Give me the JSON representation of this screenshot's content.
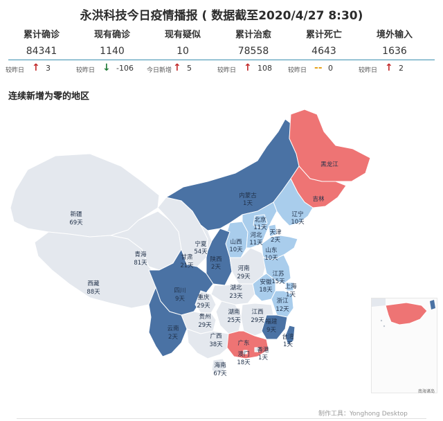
{
  "title": "永洪科技今日疫情播报 ( 数据截至2020/4/27 8:30)",
  "stats": [
    {
      "label": "累计确诊",
      "value": "84341",
      "cmp_label": "较昨日",
      "dir": "up",
      "arrow": "↑",
      "delta": "3"
    },
    {
      "label": "现有确诊",
      "value": "1140",
      "cmp_label": "较昨日",
      "dir": "down",
      "arrow": "↓",
      "delta": "-106"
    },
    {
      "label": "现有疑似",
      "value": "10",
      "cmp_label": "今日新增",
      "dir": "up",
      "arrow": "↑",
      "delta": "5"
    },
    {
      "label": "累计治愈",
      "value": "78558",
      "cmp_label": "较昨日",
      "dir": "up",
      "arrow": "↑",
      "delta": "108"
    },
    {
      "label": "累计死亡",
      "value": "4643",
      "cmp_label": "较昨日",
      "dir": "flat",
      "arrow": "--",
      "delta": "0"
    },
    {
      "label": "境外输入",
      "value": "1636",
      "cmp_label": "较昨日",
      "dir": "up",
      "arrow": "↑",
      "delta": "2"
    }
  ],
  "section_title": "连续新增为零的地区",
  "colors": {
    "dark": "#4a72a4",
    "light": "#a9cdec",
    "red": "#ee7474",
    "grey": "#e4e8ee",
    "border": "#ffffff"
  },
  "regions": [
    {
      "name": "黑龙江",
      "days": "",
      "cat": "red"
    },
    {
      "name": "吉林",
      "days": "",
      "cat": "red"
    },
    {
      "name": "辽宁",
      "days": "10天",
      "cat": "light"
    },
    {
      "name": "内蒙古",
      "days": "1天",
      "cat": "dark"
    },
    {
      "name": "北京",
      "days": "11天",
      "cat": "light"
    },
    {
      "name": "天津",
      "days": "2天",
      "cat": "light"
    },
    {
      "name": "河北",
      "days": "11天",
      "cat": "light"
    },
    {
      "name": "山西",
      "days": "10天",
      "cat": "light"
    },
    {
      "name": "山东",
      "days": "10天",
      "cat": "light"
    },
    {
      "name": "新疆",
      "days": "69天",
      "cat": "grey"
    },
    {
      "name": "西藏",
      "days": "88天",
      "cat": "grey"
    },
    {
      "name": "青海",
      "days": "81天",
      "cat": "grey"
    },
    {
      "name": "甘肃",
      "days": "21天",
      "cat": "grey"
    },
    {
      "name": "宁夏",
      "days": "54天",
      "cat": "grey"
    },
    {
      "name": "陕西",
      "days": "2天",
      "cat": "dark"
    },
    {
      "name": "河南",
      "days": "29天",
      "cat": "grey"
    },
    {
      "name": "江苏",
      "days": "15天",
      "cat": "light"
    },
    {
      "name": "安徽",
      "days": "18天",
      "cat": "light"
    },
    {
      "name": "上海",
      "days": "1天",
      "cat": "light"
    },
    {
      "name": "湖北",
      "days": "23天",
      "cat": "grey"
    },
    {
      "name": "四川",
      "days": "9天",
      "cat": "dark"
    },
    {
      "name": "重庆",
      "days": "29天",
      "cat": "grey"
    },
    {
      "name": "浙江",
      "days": "12天",
      "cat": "light"
    },
    {
      "name": "湖南",
      "days": "25天",
      "cat": "grey"
    },
    {
      "name": "江西",
      "days": "29天",
      "cat": "grey"
    },
    {
      "name": "贵州",
      "days": "29天",
      "cat": "grey"
    },
    {
      "name": "福建",
      "days": "9天",
      "cat": "dark"
    },
    {
      "name": "云南",
      "days": "2天",
      "cat": "dark"
    },
    {
      "name": "广西",
      "days": "38天",
      "cat": "grey"
    },
    {
      "name": "广东",
      "days": "",
      "cat": "red"
    },
    {
      "name": "台湾",
      "days": "1天",
      "cat": "dark"
    },
    {
      "name": "香港",
      "days": "1天",
      "cat": "grey"
    },
    {
      "name": "澳门",
      "days": "18天",
      "cat": "grey"
    },
    {
      "name": "海南",
      "days": "67天",
      "cat": "grey"
    }
  ],
  "scs_label": "南海诸岛",
  "credit": "制作工具：Yonghong Desktop"
}
